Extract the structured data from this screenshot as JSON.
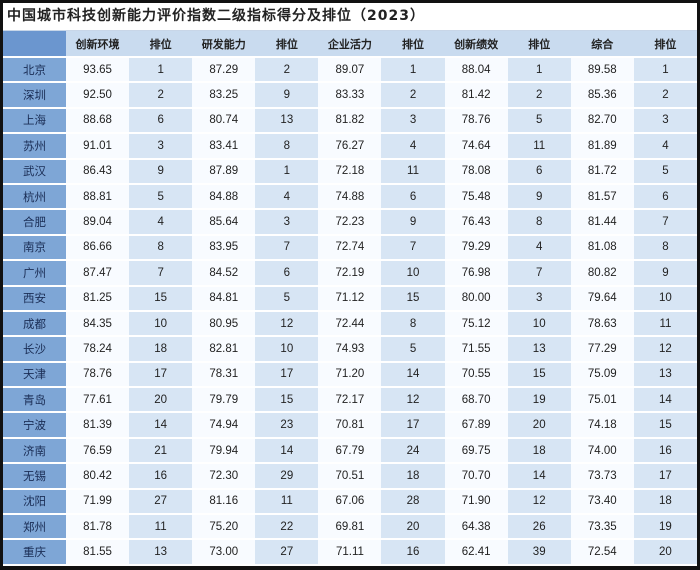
{
  "title": "中国城市科技创新能力评价指数二级指标得分及排位（2023）",
  "headers": [
    "",
    "创新环境",
    "排位",
    "研发能力",
    "排位",
    "企业活力",
    "排位",
    "创新绩效",
    "排位",
    "综合",
    "排位"
  ],
  "rows": [
    [
      "北京",
      "93.65",
      "1",
      "87.29",
      "2",
      "89.07",
      "1",
      "88.04",
      "1",
      "89.58",
      "1"
    ],
    [
      "深圳",
      "92.50",
      "2",
      "83.25",
      "9",
      "83.33",
      "2",
      "81.42",
      "2",
      "85.36",
      "2"
    ],
    [
      "上海",
      "88.68",
      "6",
      "80.74",
      "13",
      "81.82",
      "3",
      "78.76",
      "5",
      "82.70",
      "3"
    ],
    [
      "苏州",
      "91.01",
      "3",
      "83.41",
      "8",
      "76.27",
      "4",
      "74.64",
      "11",
      "81.89",
      "4"
    ],
    [
      "武汉",
      "86.43",
      "9",
      "87.89",
      "1",
      "72.18",
      "11",
      "78.08",
      "6",
      "81.72",
      "5"
    ],
    [
      "杭州",
      "88.81",
      "5",
      "84.88",
      "4",
      "74.88",
      "6",
      "75.48",
      "9",
      "81.57",
      "6"
    ],
    [
      "合肥",
      "89.04",
      "4",
      "85.64",
      "3",
      "72.23",
      "9",
      "76.43",
      "8",
      "81.44",
      "7"
    ],
    [
      "南京",
      "86.66",
      "8",
      "83.95",
      "7",
      "72.74",
      "7",
      "79.29",
      "4",
      "81.08",
      "8"
    ],
    [
      "广州",
      "87.47",
      "7",
      "84.52",
      "6",
      "72.19",
      "10",
      "76.98",
      "7",
      "80.82",
      "9"
    ],
    [
      "西安",
      "81.25",
      "15",
      "84.81",
      "5",
      "71.12",
      "15",
      "80.00",
      "3",
      "79.64",
      "10"
    ],
    [
      "成都",
      "84.35",
      "10",
      "80.95",
      "12",
      "72.44",
      "8",
      "75.12",
      "10",
      "78.63",
      "11"
    ],
    [
      "长沙",
      "78.24",
      "18",
      "82.81",
      "10",
      "74.93",
      "5",
      "71.55",
      "13",
      "77.29",
      "12"
    ],
    [
      "天津",
      "78.76",
      "17",
      "78.31",
      "17",
      "71.20",
      "14",
      "70.55",
      "15",
      "75.09",
      "13"
    ],
    [
      "青岛",
      "77.61",
      "20",
      "79.79",
      "15",
      "72.17",
      "12",
      "68.70",
      "19",
      "75.01",
      "14"
    ],
    [
      "宁波",
      "81.39",
      "14",
      "74.94",
      "23",
      "70.81",
      "17",
      "67.89",
      "20",
      "74.18",
      "15"
    ],
    [
      "济南",
      "76.59",
      "21",
      "79.94",
      "14",
      "67.79",
      "24",
      "69.75",
      "18",
      "74.00",
      "16"
    ],
    [
      "无锡",
      "80.42",
      "16",
      "72.30",
      "29",
      "70.51",
      "18",
      "70.70",
      "14",
      "73.73",
      "17"
    ],
    [
      "沈阳",
      "71.99",
      "27",
      "81.16",
      "11",
      "67.06",
      "28",
      "71.90",
      "12",
      "73.40",
      "18"
    ],
    [
      "郑州",
      "81.78",
      "11",
      "75.20",
      "22",
      "69.81",
      "20",
      "64.38",
      "26",
      "73.35",
      "19"
    ],
    [
      "重庆",
      "81.55",
      "13",
      "73.00",
      "27",
      "71.11",
      "16",
      "62.41",
      "39",
      "72.54",
      "20"
    ]
  ]
}
